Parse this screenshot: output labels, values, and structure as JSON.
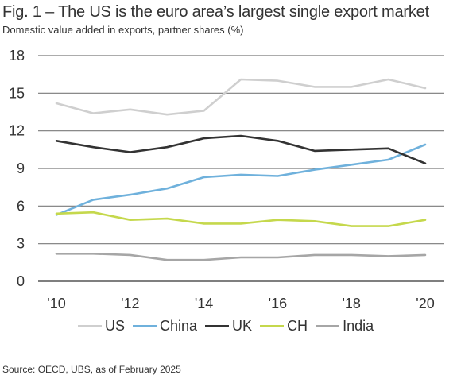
{
  "header": {
    "title": "Fig. 1 – The US is the euro area’s largest single export market",
    "subtitle": "Domestic value added in exports, partner shares (%)"
  },
  "source": "Source: OECD, UBS, as of February 2025",
  "chart_data": {
    "type": "line",
    "title": "Fig. 1 – The US is the euro area’s largest single export market",
    "subtitle": "Domestic value added in exports, partner shares (%)",
    "xlabel": "",
    "ylabel": "",
    "x": [
      2010,
      2011,
      2012,
      2013,
      2014,
      2015,
      2016,
      2017,
      2018,
      2019,
      2020
    ],
    "x_tick_values": [
      2010,
      2012,
      2014,
      2016,
      2018,
      2020
    ],
    "x_tick_labels": [
      "'10",
      "'12",
      "'14",
      "'16",
      "'18",
      "'20"
    ],
    "y_ticks": [
      0,
      3,
      6,
      9,
      12,
      15,
      18
    ],
    "xlim": [
      2010,
      2020
    ],
    "ylim": [
      0,
      18
    ],
    "grid": "horizontal",
    "legend_position": "bottom",
    "series": [
      {
        "name": "US",
        "color": "#cfcfcf",
        "values": [
          14.2,
          13.4,
          13.7,
          13.3,
          13.6,
          16.1,
          16.0,
          15.5,
          15.5,
          16.1,
          15.4
        ]
      },
      {
        "name": "China",
        "color": "#6fb1dc",
        "values": [
          5.3,
          6.5,
          6.9,
          7.4,
          8.3,
          8.5,
          8.4,
          8.9,
          9.3,
          9.7,
          10.9
        ]
      },
      {
        "name": "UK",
        "color": "#333333",
        "values": [
          11.2,
          10.7,
          10.3,
          10.7,
          11.4,
          11.6,
          11.2,
          10.4,
          10.5,
          10.6,
          9.4
        ]
      },
      {
        "name": "CH",
        "color": "#c5d84c",
        "values": [
          5.4,
          5.5,
          4.9,
          5.0,
          4.6,
          4.6,
          4.9,
          4.8,
          4.4,
          4.4,
          4.9
        ]
      },
      {
        "name": "India",
        "color": "#a6a6a6",
        "values": [
          2.2,
          2.2,
          2.1,
          1.7,
          1.7,
          1.9,
          1.9,
          2.1,
          2.1,
          2.0,
          2.1
        ]
      }
    ]
  }
}
